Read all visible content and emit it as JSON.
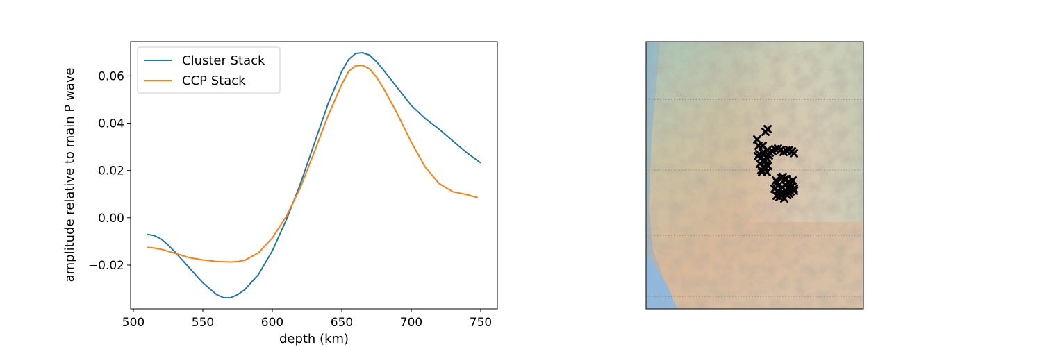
{
  "chart_data": [
    {
      "type": "line",
      "title": "",
      "xlabel": "depth (km)",
      "ylabel": "amplitude relative to main P wave",
      "xlim": [
        498,
        762
      ],
      "ylim": [
        -0.0385,
        0.0745
      ],
      "xticks": [
        500,
        550,
        600,
        650,
        700,
        750
      ],
      "yticks": [
        -0.02,
        0.0,
        0.02,
        0.04,
        0.06
      ],
      "xtick_labels": [
        "500",
        "550",
        "600",
        "650",
        "700",
        "750"
      ],
      "ytick_labels": [
        "−0.02",
        "0.00",
        "0.02",
        "0.04",
        "0.06"
      ],
      "grid": false,
      "legend_position": "upper-left",
      "series": [
        {
          "name": "Cluster Stack",
          "color": "#1f77b4",
          "x": [
            510,
            515,
            520,
            525,
            530,
            540,
            550,
            560,
            565,
            570,
            575,
            580,
            590,
            600,
            610,
            620,
            630,
            640,
            650,
            655,
            660,
            665,
            670,
            675,
            680,
            690,
            700,
            710,
            720,
            730,
            740,
            750
          ],
          "y": [
            -0.007,
            -0.0075,
            -0.009,
            -0.0115,
            -0.0145,
            -0.021,
            -0.0275,
            -0.0325,
            -0.0338,
            -0.0338,
            -0.0325,
            -0.0305,
            -0.024,
            -0.014,
            -0.001,
            0.014,
            0.031,
            0.048,
            0.062,
            0.067,
            0.0695,
            0.0698,
            0.0688,
            0.066,
            0.0625,
            0.055,
            0.0475,
            0.042,
            0.0375,
            0.0325,
            0.0275,
            0.0232
          ]
        },
        {
          "name": "CCP Stack",
          "color": "#ff7f0e",
          "x": [
            510,
            515,
            520,
            530,
            540,
            550,
            560,
            570,
            575,
            580,
            590,
            600,
            610,
            620,
            630,
            640,
            650,
            655,
            660,
            665,
            670,
            675,
            680,
            690,
            700,
            710,
            720,
            730,
            740,
            748
          ],
          "y": [
            -0.0125,
            -0.0128,
            -0.0133,
            -0.015,
            -0.0168,
            -0.0178,
            -0.0185,
            -0.0187,
            -0.0185,
            -0.018,
            -0.0148,
            -0.0085,
            0.0005,
            0.0125,
            0.0275,
            0.043,
            0.0565,
            0.062,
            0.0643,
            0.0645,
            0.063,
            0.0595,
            0.0548,
            0.044,
            0.032,
            0.0215,
            0.0145,
            0.011,
            0.0098,
            0.0085
          ]
        }
      ]
    },
    {
      "type": "scatter",
      "title": "",
      "description_marker": "x",
      "color": "#000000",
      "xlim": [
        0,
        313
      ],
      "ylim": [
        0,
        385
      ],
      "series": [
        {
          "name": "",
          "x": [
            160,
            168,
            175,
            178,
            182,
            186,
            190,
            194,
            198,
            202,
            206,
            210,
            213,
            161,
            165,
            169,
            173,
            177,
            164,
            170,
            174,
            166,
            171,
            176,
            163,
            168,
            172,
            167,
            174,
            172,
            175,
            162,
            187,
            195,
            200,
            205,
            208,
            211,
            190,
            196,
            201,
            207,
            213,
            185,
            190,
            195,
            200,
            205,
            209,
            213,
            188,
            193,
            198,
            203,
            208,
            197,
            202,
            192,
            199,
            206,
            189
          ],
          "y": [
            141,
            150,
            156,
            160,
            158,
            155,
            154,
            156,
            159,
            157,
            156,
            158,
            161,
            165,
            168,
            171,
            167,
            164,
            176,
            180,
            177,
            185,
            183,
            179,
            162,
            160,
            172,
            188,
            188,
            130,
            126,
            150,
            200,
            196,
            198,
            202,
            205,
            200,
            208,
            210,
            207,
            212,
            215,
            212,
            215,
            218,
            214,
            212,
            209,
            212,
            222,
            220,
            218,
            221,
            216,
            195,
            198,
            224,
            226,
            219,
            203
          ]
        }
      ]
    }
  ]
}
